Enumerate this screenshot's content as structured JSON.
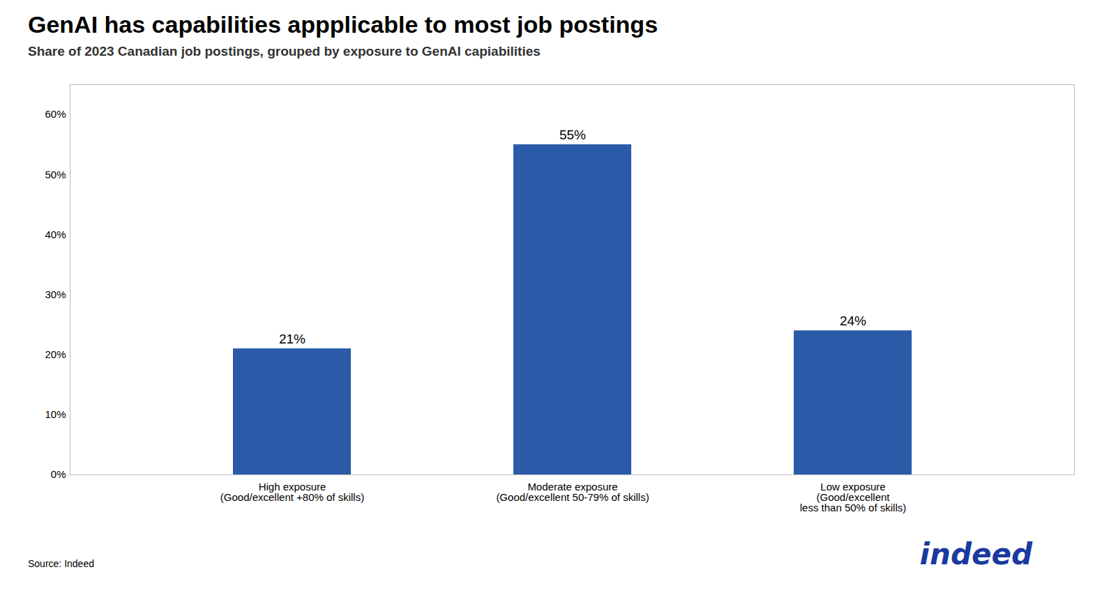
{
  "chart_data": {
    "type": "bar",
    "title": "GenAI has capabilities appplicable to most job postings",
    "subtitle": "Share of 2023 Canadian job postings, grouped by exposure to GenAI capiabilities",
    "categories": [
      "High exposure\n(Good/excellent +80% of skills)",
      "Moderate exposure\n(Good/excellent 50-79% of skills)",
      "Low exposure\n(Good/excellent\nless than 50% of skills)"
    ],
    "values": [
      21,
      55,
      24
    ],
    "value_labels": [
      "21%",
      "55%",
      "24%"
    ],
    "data_labels": true,
    "color": "#2B5BA8",
    "ylim": [
      0,
      65
    ],
    "yticks": [
      {
        "value": 0,
        "label": "0%"
      },
      {
        "value": 10,
        "label": "10%"
      },
      {
        "value": 20,
        "label": "20%"
      },
      {
        "value": 30,
        "label": "30%"
      },
      {
        "value": 40,
        "label": "40%"
      },
      {
        "value": 50,
        "label": "50%"
      },
      {
        "value": 60,
        "label": "60%"
      }
    ],
    "grid": false,
    "annotations": [
      {
        "text": "Source:  Indeed"
      },
      {
        "text": "indeed",
        "color": "#1a3a9f"
      }
    ]
  }
}
